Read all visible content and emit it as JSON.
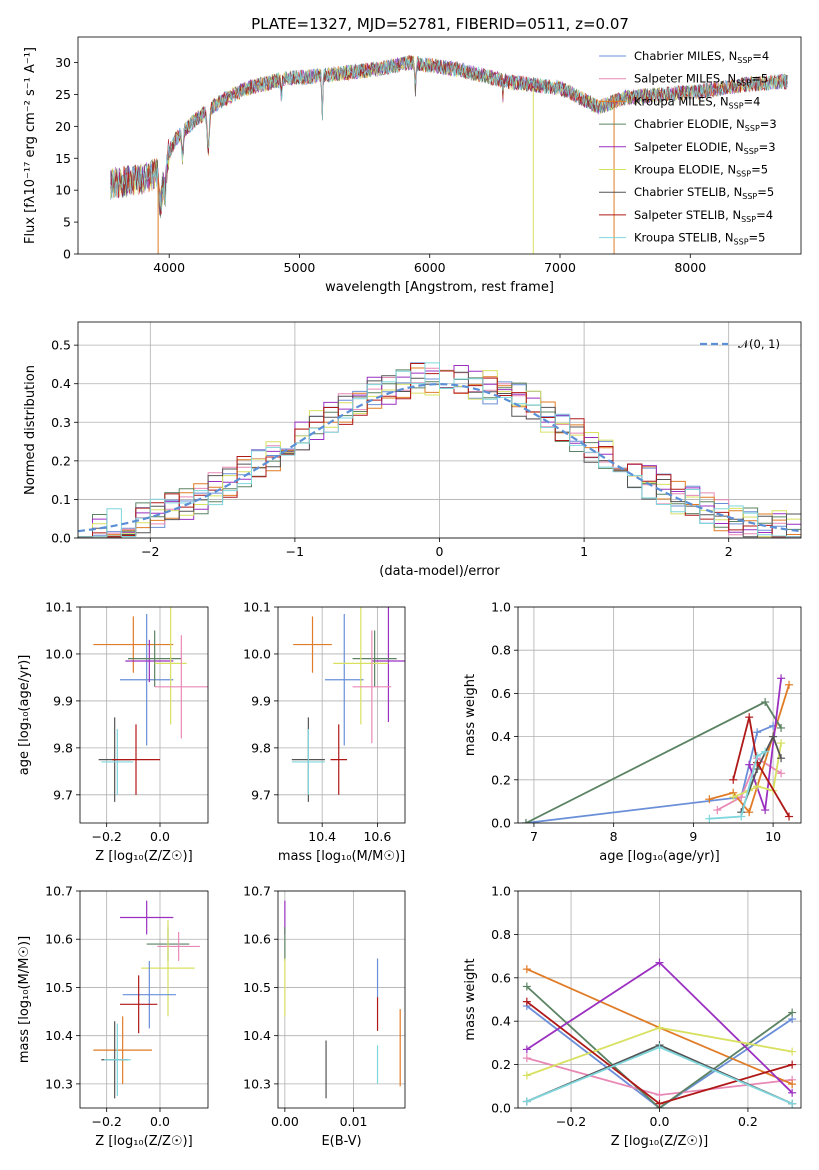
{
  "chart_data": [
    {
      "id": "spectrum",
      "type": "line",
      "title": "PLATE=1327, MJD=52781, FIBERID=0511, z=0.07",
      "xlabel": "wavelength [Angstrom, rest frame]",
      "ylabel": "Flux [fλ10⁻¹⁷ erg cm⁻² s⁻¹ A⁻¹]",
      "xlim": [
        3300,
        8850
      ],
      "ylim": [
        0,
        34
      ],
      "xticks": [
        4000,
        5000,
        6000,
        7000,
        8000
      ],
      "yticks": [
        0,
        5,
        10,
        15,
        20,
        25,
        30
      ],
      "legend_position": "top-right",
      "series": [
        {
          "name": "Chabrier MILES, N_SSP=4",
          "color": "#6a8fd8"
        },
        {
          "name": "Salpeter MILES, N_SSP=5",
          "color": "#e889b5"
        },
        {
          "name": "Kroupa MILES, N_SSP=4",
          "color": "#e07b26"
        },
        {
          "name": "Chabrier ELODIE, N_SSP=3",
          "color": "#5b8363"
        },
        {
          "name": "Salpeter ELODIE, N_SSP=3",
          "color": "#9b30c0"
        },
        {
          "name": "Kroupa ELODIE, N_SSP=5",
          "color": "#d8e060"
        },
        {
          "name": "Chabrier STELIB, N_SSP=5",
          "color": "#555555"
        },
        {
          "name": "Salpeter STELIB, N_SSP=4",
          "color": "#b01818"
        },
        {
          "name": "Kroupa STELIB, N_SSP=5",
          "color": "#7fd6dc"
        }
      ],
      "continuum_shape": [
        [
          3550,
          11
        ],
        [
          3700,
          11.5
        ],
        [
          3850,
          12
        ],
        [
          3950,
          14
        ],
        [
          4050,
          18
        ],
        [
          4200,
          21
        ],
        [
          4400,
          24
        ],
        [
          4600,
          26
        ],
        [
          4900,
          27.5
        ],
        [
          5200,
          28
        ],
        [
          5600,
          29
        ],
        [
          5850,
          30
        ],
        [
          6200,
          29
        ],
        [
          6600,
          27
        ],
        [
          7000,
          26
        ],
        [
          7300,
          23
        ],
        [
          7500,
          24.5
        ],
        [
          7800,
          25
        ],
        [
          8100,
          25.5
        ],
        [
          8400,
          26.5
        ],
        [
          8700,
          27
        ]
      ]
    },
    {
      "id": "residuals",
      "type": "histogram",
      "xlabel": "(data-model)/error",
      "ylabel": "Normed distribution",
      "xlim": [
        -2.5,
        2.5
      ],
      "ylim": [
        0,
        0.56
      ],
      "xticks": [
        -2,
        -1,
        0,
        1,
        2
      ],
      "yticks": [
        0.0,
        0.1,
        0.2,
        0.3,
        0.4,
        0.5
      ],
      "legend": "𝒩(0, 1)",
      "legend_position": "top-right",
      "normal_curve_color": "#5b8fd6"
    },
    {
      "id": "age-vs-z",
      "type": "errorbar",
      "xlabel": "Z [log₁₀(Z/Z☉)]",
      "ylabel": "age  [log₁₀(age/yr)]",
      "xlim": [
        -0.3,
        0.18
      ],
      "ylim": [
        9.64,
        10.1
      ],
      "xticks": [
        -0.2,
        0.0
      ],
      "yticks": [
        9.7,
        9.8,
        9.9,
        10.0,
        10.1
      ],
      "points": [
        {
          "color": "#e07b26",
          "x": -0.1,
          "xerr": 0.15,
          "y": 10.02,
          "yerr": 0.06
        },
        {
          "color": "#6a8fd8",
          "x": -0.05,
          "xerr": 0.1,
          "y": 9.945,
          "yerr": 0.14
        },
        {
          "color": "#9b30c0",
          "x": -0.04,
          "xerr": 0.09,
          "y": 9.985,
          "yerr": 0.045
        },
        {
          "color": "#5b8363",
          "x": -0.02,
          "xerr": 0.1,
          "y": 9.99,
          "yerr": 0.06
        },
        {
          "color": "#d8e060",
          "x": 0.04,
          "xerr": 0.06,
          "y": 9.98,
          "yerr": 0.13
        },
        {
          "color": "#e889b5",
          "x": 0.08,
          "xerr": 0.1,
          "y": 9.93,
          "yerr": 0.11
        },
        {
          "color": "#555555",
          "x": -0.17,
          "xerr": 0.06,
          "y": 9.775,
          "yerr": 0.09
        },
        {
          "color": "#7fd6dc",
          "x": -0.16,
          "xerr": 0.06,
          "y": 9.77,
          "yerr": 0.07
        },
        {
          "color": "#b01818",
          "x": -0.09,
          "xerr": 0.09,
          "y": 9.775,
          "yerr": 0.075
        }
      ]
    },
    {
      "id": "age-vs-mass",
      "type": "errorbar",
      "xlabel": "mass [log₁₀(M/M☉)]",
      "ylabel": "",
      "xlim": [
        10.24,
        10.7
      ],
      "ylim": [
        9.64,
        10.1
      ],
      "xticks": [
        10.4,
        10.6
      ],
      "yticks": [
        9.7,
        9.8,
        9.9,
        10.0,
        10.1
      ],
      "points": [
        {
          "color": "#e07b26",
          "x": 10.365,
          "xerr": 0.07,
          "y": 10.02,
          "yerr": 0.06
        },
        {
          "color": "#6a8fd8",
          "x": 10.48,
          "xerr": 0.07,
          "y": 9.945,
          "yerr": 0.14
        },
        {
          "color": "#9b30c0",
          "x": 10.64,
          "xerr": 0.06,
          "y": 9.985,
          "yerr": 0.13
        },
        {
          "color": "#5b8363",
          "x": 10.59,
          "xerr": 0.08,
          "y": 9.99,
          "yerr": 0.06
        },
        {
          "color": "#d8e060",
          "x": 10.54,
          "xerr": 0.1,
          "y": 9.98,
          "yerr": 0.13
        },
        {
          "color": "#e889b5",
          "x": 10.58,
          "xerr": 0.07,
          "y": 9.93,
          "yerr": 0.12
        },
        {
          "color": "#555555",
          "x": 10.35,
          "xerr": 0.06,
          "y": 9.775,
          "yerr": 0.09
        },
        {
          "color": "#7fd6dc",
          "x": 10.35,
          "xerr": 0.06,
          "y": 9.77,
          "yerr": 0.07
        },
        {
          "color": "#b01818",
          "x": 10.46,
          "xerr": 0.03,
          "y": 9.775,
          "yerr": 0.075
        }
      ]
    },
    {
      "id": "mass-weight-vs-age",
      "type": "line",
      "xlabel": "age  [log₁₀(age/yr)]",
      "ylabel": "mass weight",
      "xlim": [
        6.8,
        10.35
      ],
      "ylim": [
        0,
        1
      ],
      "xticks": [
        7,
        8,
        9,
        10
      ],
      "yticks": [
        0.0,
        0.2,
        0.4,
        0.6,
        0.8,
        1.0
      ],
      "series": [
        {
          "color": "#6a8fd8",
          "x": [
            6.9,
            9.6,
            9.8,
            10.0
          ],
          "y": [
            0.0,
            0.12,
            0.42,
            0.45
          ]
        },
        {
          "color": "#e889b5",
          "x": [
            9.3,
            9.6,
            9.8,
            10.1
          ],
          "y": [
            0.06,
            0.12,
            0.3,
            0.23
          ]
        },
        {
          "color": "#e07b26",
          "x": [
            9.2,
            9.5,
            9.7,
            10.2
          ],
          "y": [
            0.11,
            0.14,
            0.05,
            0.64
          ]
        },
        {
          "color": "#5b8363",
          "x": [
            6.9,
            9.9,
            10.1
          ],
          "y": [
            0.0,
            0.56,
            0.44
          ]
        },
        {
          "color": "#9b30c0",
          "x": [
            9.7,
            9.9,
            10.1
          ],
          "y": [
            0.27,
            0.06,
            0.67
          ]
        },
        {
          "color": "#d8e060",
          "x": [
            9.5,
            9.7,
            9.8,
            10.0,
            10.1
          ],
          "y": [
            0.12,
            0.15,
            0.17,
            0.15,
            0.37
          ]
        },
        {
          "color": "#555555",
          "x": [
            9.6,
            9.8,
            10.0,
            10.1
          ],
          "y": [
            0.05,
            0.25,
            0.4,
            0.3
          ]
        },
        {
          "color": "#b01818",
          "x": [
            9.5,
            9.7,
            9.8,
            10.2
          ],
          "y": [
            0.2,
            0.49,
            0.28,
            0.03
          ]
        },
        {
          "color": "#7fd6dc",
          "x": [
            9.2,
            9.6,
            9.8,
            9.9
          ],
          "y": [
            0.02,
            0.03,
            0.31,
            0.33
          ]
        }
      ]
    },
    {
      "id": "mass-vs-z",
      "type": "errorbar",
      "xlabel": "Z [log₁₀(Z/Z☉)]",
      "ylabel": "mass [log₁₀(M/M☉)]",
      "xlim": [
        -0.3,
        0.18
      ],
      "ylim": [
        10.25,
        10.7
      ],
      "xticks": [
        -0.2,
        0.0
      ],
      "yticks": [
        10.3,
        10.4,
        10.5,
        10.6,
        10.7
      ],
      "points": [
        {
          "color": "#9b30c0",
          "x": -0.05,
          "xerr": 0.1,
          "y": 10.645,
          "yerr": 0.035
        },
        {
          "color": "#5b8363",
          "x": 0.03,
          "xerr": 0.08,
          "y": 10.59,
          "yerr": 0.035
        },
        {
          "color": "#e889b5",
          "x": 0.07,
          "xerr": 0.08,
          "y": 10.585,
          "yerr": 0.03
        },
        {
          "color": "#d8e060",
          "x": 0.03,
          "xerr": 0.1,
          "y": 10.54,
          "yerr": 0.1
        },
        {
          "color": "#6a8fd8",
          "x": -0.04,
          "xerr": 0.1,
          "y": 10.485,
          "yerr": 0.07
        },
        {
          "color": "#b01818",
          "x": -0.08,
          "xerr": 0.07,
          "y": 10.465,
          "yerr": 0.06
        },
        {
          "color": "#e07b26",
          "x": -0.14,
          "xerr": 0.11,
          "y": 10.37,
          "yerr": 0.07
        },
        {
          "color": "#555555",
          "x": -0.17,
          "xerr": 0.05,
          "y": 10.35,
          "yerr": 0.08
        },
        {
          "color": "#7fd6dc",
          "x": -0.16,
          "xerr": 0.05,
          "y": 10.35,
          "yerr": 0.075
        }
      ]
    },
    {
      "id": "mass-vs-ebv",
      "type": "errorbar",
      "xlabel": "E(B-V)",
      "ylabel": "",
      "xlim": [
        -0.001,
        0.0175
      ],
      "ylim": [
        10.25,
        10.7
      ],
      "xticks": [
        0.0,
        0.01
      ],
      "yticks": [
        10.3,
        10.4,
        10.5,
        10.6,
        10.7
      ],
      "points": [
        {
          "color": "#9b30c0",
          "x": 0.0,
          "y": 10.645,
          "yerr": 0.035
        },
        {
          "color": "#5b8363",
          "x": 0.0,
          "y": 10.59,
          "yerr": 0.035
        },
        {
          "color": "#d8e060",
          "x": 0.0,
          "y": 10.5,
          "yerr": 0.06
        },
        {
          "color": "#555555",
          "x": 0.006,
          "y": 10.33,
          "yerr": 0.06
        },
        {
          "color": "#6a8fd8",
          "x": 0.0135,
          "y": 10.52,
          "yerr": 0.04
        },
        {
          "color": "#b01818",
          "x": 0.0135,
          "y": 10.445,
          "yerr": 0.035
        },
        {
          "color": "#7fd6dc",
          "x": 0.0135,
          "y": 10.34,
          "yerr": 0.04
        },
        {
          "color": "#e07b26",
          "x": 0.0168,
          "y": 10.375,
          "yerr": 0.08
        }
      ]
    },
    {
      "id": "mass-weight-vs-z",
      "type": "line",
      "xlabel": "Z [log₁₀(Z/Z☉)]",
      "ylabel": "mass weight",
      "xlim": [
        -0.32,
        0.32
      ],
      "ylim": [
        0,
        1
      ],
      "xticks": [
        -0.2,
        0.0,
        0.2
      ],
      "yticks": [
        0.0,
        0.2,
        0.4,
        0.6,
        0.8,
        1.0
      ],
      "series": [
        {
          "color": "#6a8fd8",
          "x": [
            -0.3,
            0.0,
            0.3
          ],
          "y": [
            0.47,
            0.0,
            0.41
          ]
        },
        {
          "color": "#e889b5",
          "x": [
            -0.3,
            0.0,
            0.3
          ],
          "y": [
            0.23,
            0.06,
            0.13
          ]
        },
        {
          "color": "#e07b26",
          "x": [
            -0.3,
            0.0,
            0.3
          ],
          "y": [
            0.64,
            0.37,
            0.11
          ]
        },
        {
          "color": "#5b8363",
          "x": [
            -0.3,
            0.0,
            0.3
          ],
          "y": [
            0.56,
            0.0,
            0.44
          ]
        },
        {
          "color": "#9b30c0",
          "x": [
            -0.3,
            0.0,
            0.3
          ],
          "y": [
            0.27,
            0.67,
            0.07
          ]
        },
        {
          "color": "#d8e060",
          "x": [
            -0.3,
            0.0,
            0.3
          ],
          "y": [
            0.15,
            0.37,
            0.26
          ]
        },
        {
          "color": "#555555",
          "x": [
            -0.3,
            0.0,
            0.3
          ],
          "y": [
            0.03,
            0.29,
            0.02
          ]
        },
        {
          "color": "#b01818",
          "x": [
            -0.3,
            0.0,
            0.3
          ],
          "y": [
            0.49,
            0.02,
            0.2
          ]
        },
        {
          "color": "#7fd6dc",
          "x": [
            -0.3,
            0.0,
            0.3
          ],
          "y": [
            0.03,
            0.28,
            0.02
          ]
        }
      ]
    }
  ]
}
